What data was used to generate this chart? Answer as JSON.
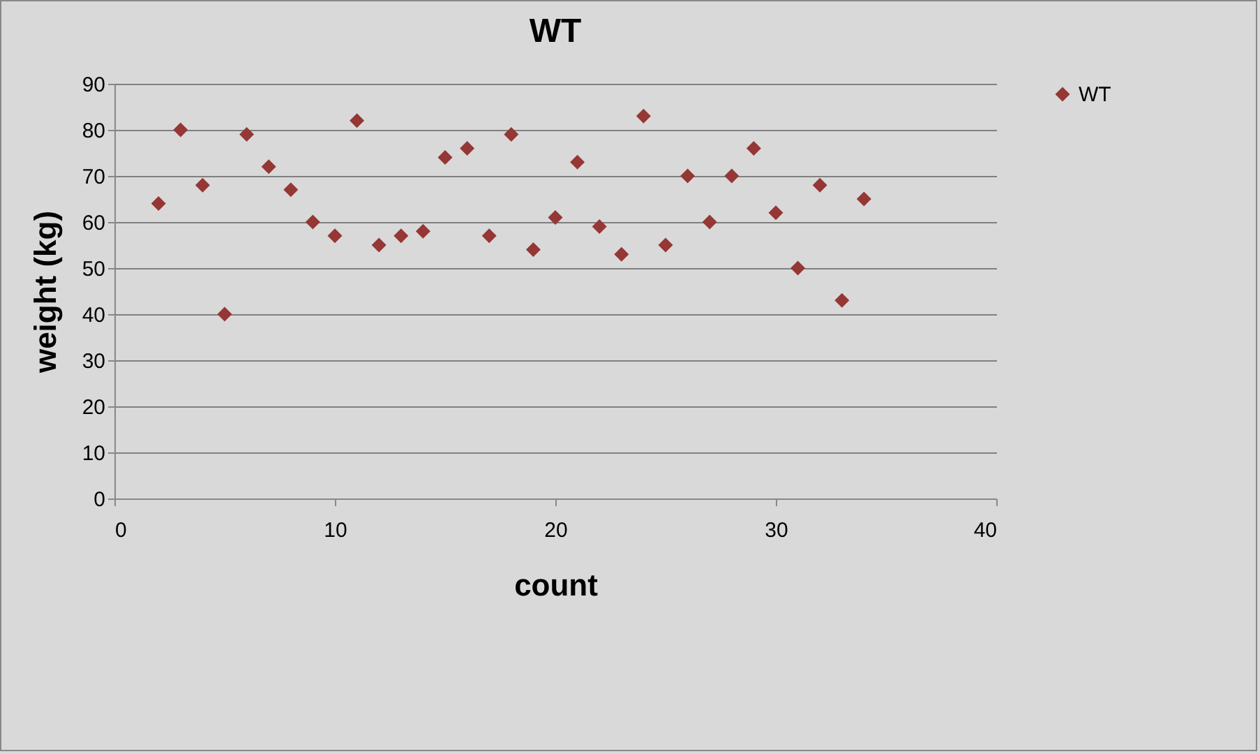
{
  "chart_data": {
    "type": "scatter",
    "title": "WT",
    "xlabel": "count",
    "ylabel": "weight (kg)",
    "x": [
      2,
      3,
      4,
      5,
      6,
      7,
      8,
      9,
      10,
      11,
      12,
      13,
      14,
      15,
      16,
      17,
      18,
      19,
      20,
      21,
      22,
      23,
      24,
      25,
      26,
      27,
      28,
      29,
      30,
      31,
      32,
      33,
      34
    ],
    "series": [
      {
        "name": "WT",
        "color": "#953735",
        "values": [
          64,
          80,
          68,
          40,
          79,
          72,
          67,
          60,
          57,
          82,
          55,
          57,
          58,
          74,
          76,
          57,
          79,
          54,
          61,
          73,
          59,
          53,
          83,
          55,
          70,
          60,
          70,
          76,
          62,
          50,
          68,
          43,
          65
        ]
      }
    ],
    "xlim": [
      0,
      40
    ],
    "xticks": [
      0,
      10,
      20,
      30,
      40
    ],
    "ylim": [
      0,
      90
    ],
    "yticks": [
      0,
      10,
      20,
      30,
      40,
      50,
      60,
      70,
      80,
      90
    ],
    "grid": "y",
    "legend": "right",
    "marker": "diamond"
  }
}
